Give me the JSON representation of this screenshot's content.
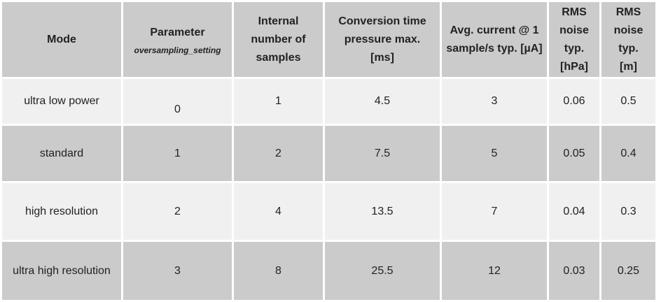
{
  "table": {
    "headers": [
      {
        "label": "Mode",
        "sub": ""
      },
      {
        "label": "Parameter",
        "sub": "oversampling_setting"
      },
      {
        "label": "Internal number of samples",
        "sub": ""
      },
      {
        "label": "Conversion time pressure max. [ms]",
        "sub": ""
      },
      {
        "label": "Avg. current @ 1 sample/s typ. [µA]",
        "sub": ""
      },
      {
        "label": "RMS noise typ. [hPa]",
        "sub": ""
      },
      {
        "label": "RMS noise typ. [m]",
        "sub": ""
      }
    ],
    "rows": [
      [
        "ultra low power",
        "0",
        "1",
        "4.5",
        "3",
        "0.06",
        "0.5"
      ],
      [
        "standard",
        "1",
        "2",
        "7.5",
        "5",
        "0.05",
        "0.4"
      ],
      [
        "high resolution",
        "2",
        "4",
        "13.5",
        "7",
        "0.04",
        "0.3"
      ],
      [
        "ultra high resolution",
        "3",
        "8",
        "25.5",
        "12",
        "0.03",
        "0.25"
      ]
    ]
  }
}
